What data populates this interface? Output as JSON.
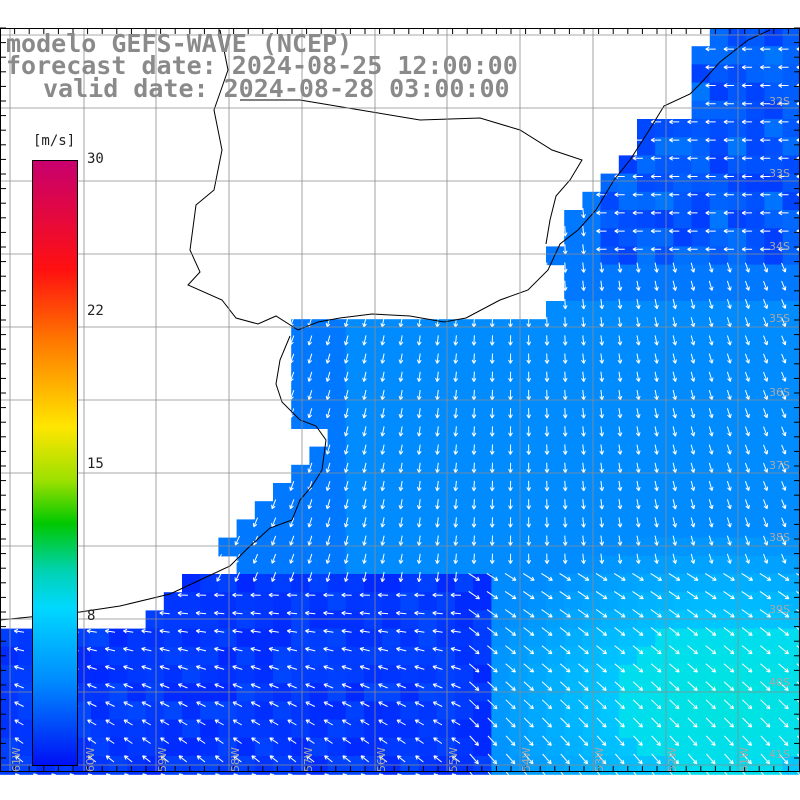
{
  "title": {
    "line1": "modelo GEFS-WAVE (NCEP)",
    "line2": "forecast date: 2024-08-25 12:00:00",
    "line3": "valid date: 2024-08-28 03:00:00"
  },
  "colorbar": {
    "units": "[m/s]",
    "ticks": [
      "30",
      "22",
      "15",
      "8"
    ],
    "colors": [
      "#c8006e",
      "#ff1010",
      "#ff7a00",
      "#ffe600",
      "#9be000",
      "#00c800",
      "#00d2b4",
      "#00d8ff",
      "#008cff",
      "#0010f5"
    ]
  },
  "map": {
    "lat_labels": [
      "32S",
      "33S",
      "34S",
      "35S",
      "36S",
      "37S",
      "38S",
      "39S",
      "40S",
      "41S"
    ],
    "lon_labels": [
      "61W",
      "60W",
      "59W",
      "58W",
      "57W",
      "56W",
      "55W",
      "54W",
      "53W",
      "52W",
      "51W"
    ],
    "land_color": "#ffffff",
    "grid_color": "#8c8c8c",
    "arrow_color": "#ffffff"
  }
}
